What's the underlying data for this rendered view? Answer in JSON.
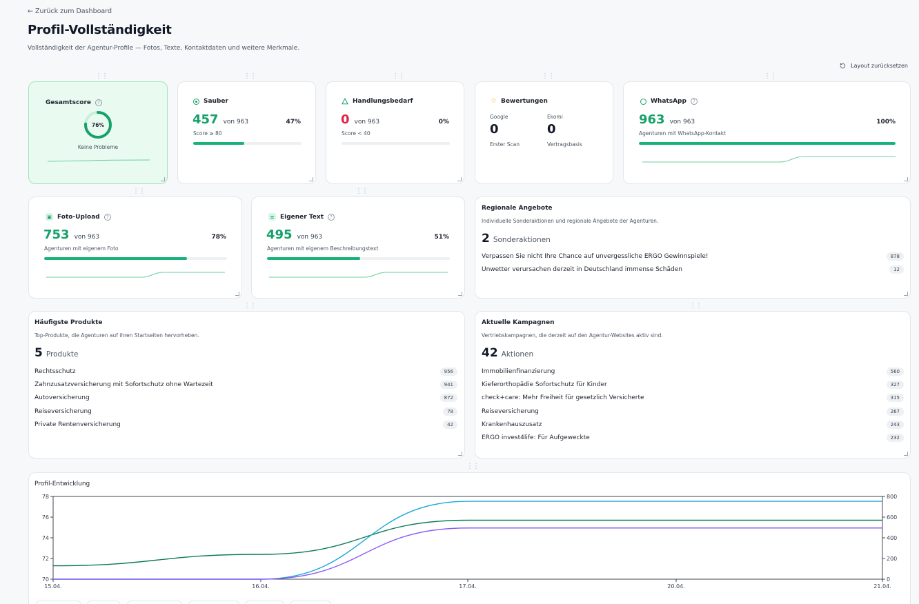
{
  "nav": {
    "back_label": "← Zurück zum Dashboard"
  },
  "page": {
    "title": "Profil-Vollständigkeit",
    "subtitle": "Vollständigkeit der Agentur-Profile — Fotos, Texte, Kontaktdaten und weitere Merkmale.",
    "reset_label": "Layout zurücksetzen"
  },
  "cards": {
    "gesamtscore": {
      "title": "Gesamtscore",
      "value": "76%",
      "progress": 0.76,
      "note": "Keine Probleme"
    },
    "sauber": {
      "title": "Sauber",
      "value": "457",
      "of": "von 963",
      "pct": "47%",
      "note": "Score ≥ 80",
      "progress": 0.47
    },
    "handlungsbedarf": {
      "title": "Handlungsbedarf",
      "value": "0",
      "of": "von 963",
      "pct": "0%",
      "note": "Score < 40",
      "progress": 0.0
    },
    "bewertungen": {
      "title": "Bewertungen",
      "google_label": "Google",
      "google_value": "0",
      "google_note": "Erster Scan",
      "ekomi_label": "Ekomi",
      "ekomi_value": "0",
      "ekomi_note": "Vertragsbasis"
    },
    "whatsapp": {
      "title": "WhatsApp",
      "value": "963",
      "of": "von 963",
      "pct": "100%",
      "note": "Agenturen mit WhatsApp-Kontakt",
      "progress": 1.0
    },
    "foto": {
      "title": "Foto-Upload",
      "value": "753",
      "of": "von 963",
      "pct": "78%",
      "note": "Agenturen mit eigenem Foto",
      "progress": 0.78
    },
    "text": {
      "title": "Eigener Text",
      "value": "495",
      "of": "von 963",
      "pct": "51%",
      "note": "Agenturen mit eigenem Beschreibungstext",
      "progress": 0.51
    }
  },
  "regional": {
    "title": "Regionale Angebote",
    "subtitle": "Individuelle Sonderaktionen und regionale Angebote der Agenturen.",
    "count": "2",
    "unit": "Sonderaktionen",
    "items": [
      {
        "label": "Verpassen Sie nicht Ihre Chance auf unvergessliche ERGO Gewinnspiele!",
        "count": "878"
      },
      {
        "label": "Unwetter verursachen derzeit in Deutschland immense Schäden",
        "count": "12"
      }
    ]
  },
  "products": {
    "title": "Häufigste Produkte",
    "subtitle": "Top-Produkte, die Agenturen auf ihren Startseiten hervorheben.",
    "count": "5",
    "unit": "Produkte",
    "items": [
      {
        "label": "Rechtsschutz",
        "count": "956"
      },
      {
        "label": "Zahnzusatzversicherung mit Sofortschutz ohne Wartezeit",
        "count": "941"
      },
      {
        "label": "Autoversicherung",
        "count": "872"
      },
      {
        "label": "Reiseversicherung",
        "count": "78"
      },
      {
        "label": "Private Rentenversicherung",
        "count": "42"
      }
    ]
  },
  "campaigns": {
    "title": "Aktuelle Kampagnen",
    "subtitle": "Vertriebskampagnen, die derzeit auf den Agentur-Websites aktiv sind.",
    "count": "42",
    "unit": "Aktionen",
    "items": [
      {
        "label": "Immobilienfinanzierung",
        "count": "560"
      },
      {
        "label": "Kieferorthopädie Sofortschutz für Kinder",
        "count": "327"
      },
      {
        "label": "check+care: Mehr Freiheit für gesetzlich Versicherte",
        "count": "315"
      },
      {
        "label": "Reiseversicherung",
        "count": "267"
      },
      {
        "label": "Krankenhauszusatz",
        "count": "243"
      },
      {
        "label": "ERGO invest4life: Für Aufgeweckte",
        "count": "232"
      }
    ]
  },
  "colors": {
    "green": "#16a06a",
    "red": "#e0234a",
    "teal": "#0e7a5b",
    "cyan": "#1ba9d6",
    "purple": "#8b5cf6"
  },
  "chart_data": {
    "type": "line",
    "title": "Profil-Entwicklung",
    "x": [
      "15.04.",
      "16.04.",
      "17.04.",
      "20.04.",
      "21.04."
    ],
    "ylim_left": [
      70,
      78
    ],
    "yticks_left": [
      "70",
      "72",
      "74",
      "76",
      "78"
    ],
    "ylim_right": [
      0,
      800
    ],
    "yticks_right": [
      "0",
      "200",
      "400",
      "600",
      "800"
    ],
    "series": [
      {
        "axis": "left",
        "color": "#0e7a5b",
        "values": [
          71.3,
          72.4,
          75.7,
          75.7,
          75.7
        ]
      },
      {
        "axis": "right",
        "color": "#1ba9d6",
        "values": [
          0,
          0,
          753,
          753,
          753
        ]
      },
      {
        "axis": "right",
        "color": "#8b5cf6",
        "values": [
          0,
          0,
          495,
          495,
          495
        ]
      }
    ],
    "grid": false
  }
}
